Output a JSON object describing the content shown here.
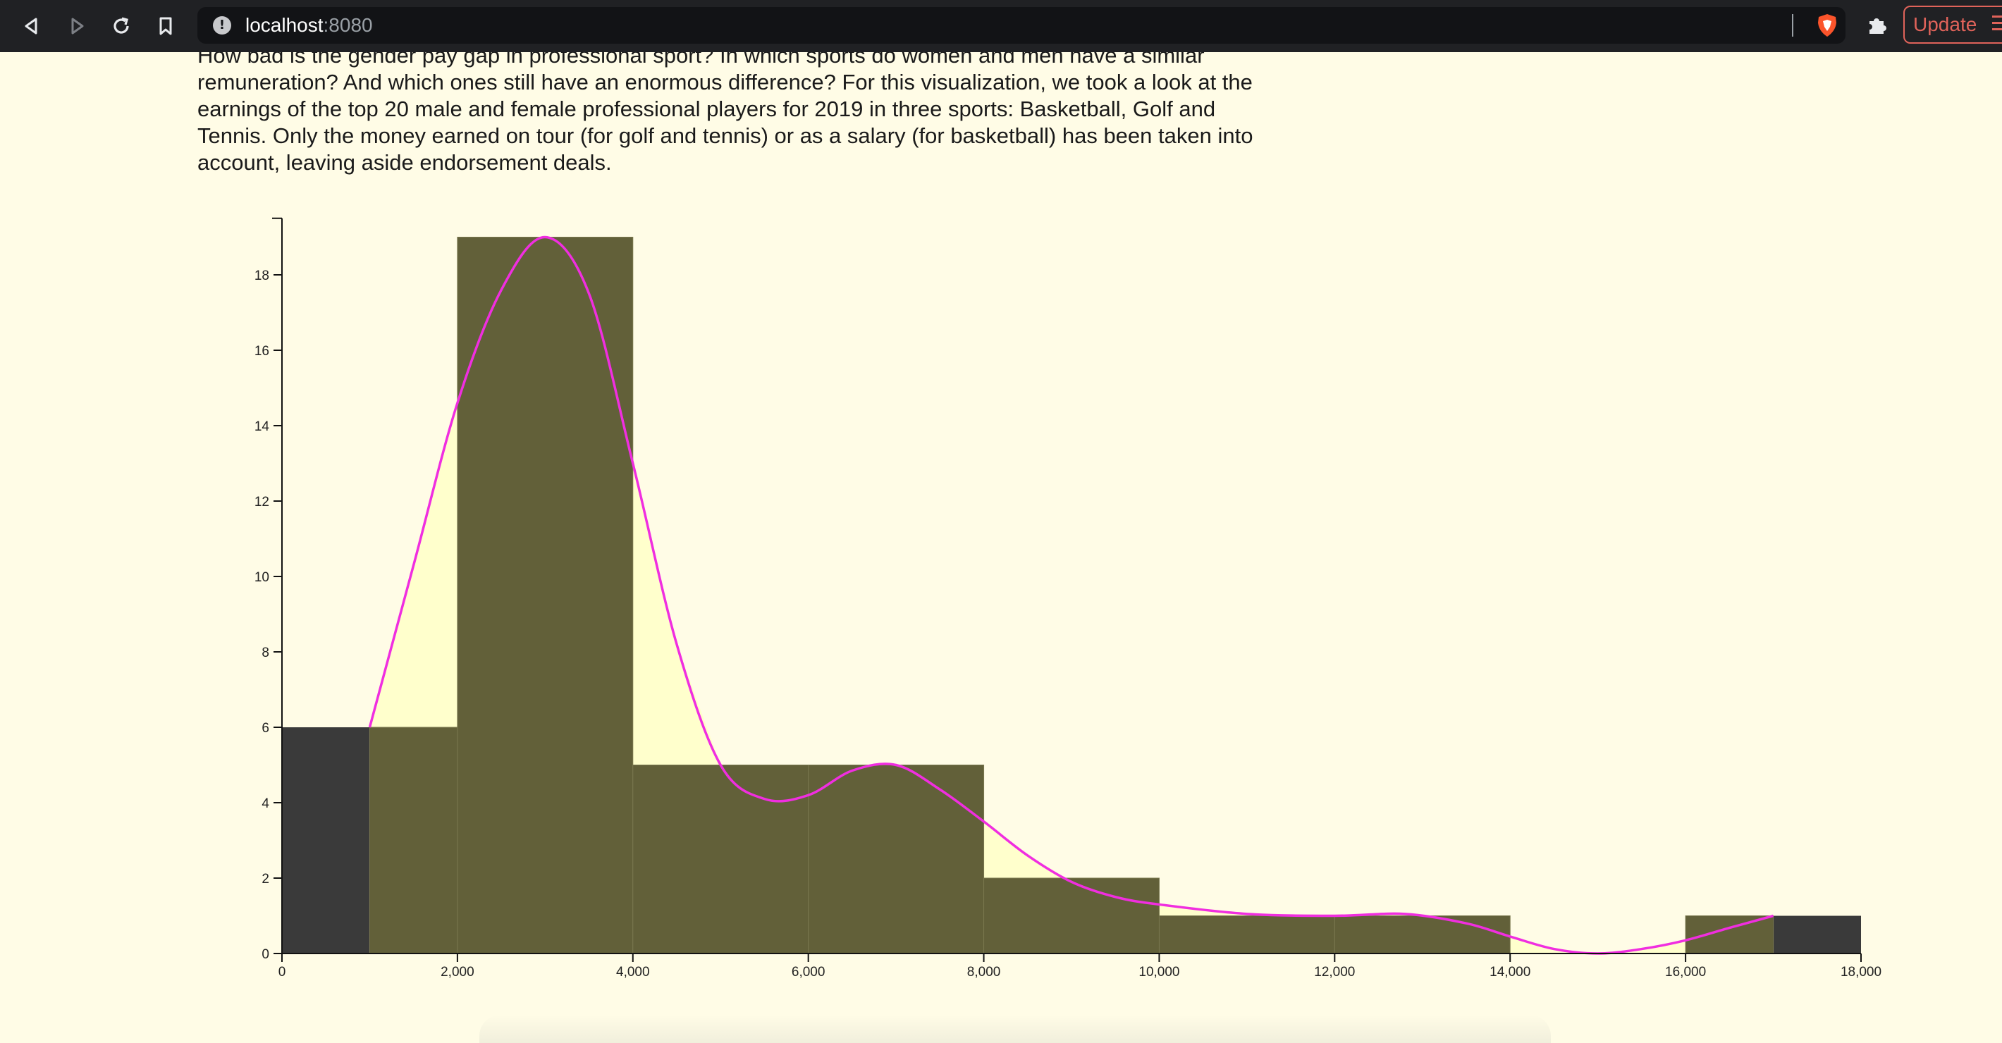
{
  "browser": {
    "url_host": "localhost",
    "url_port": ":8080",
    "update_label": "Update"
  },
  "intro": {
    "text": "How bad is the gender pay gap in professional sport? In which sports do women and men have a similar remuneration? And which ones still have an enormous difference? For this visualization, we took a look at the earnings of the top 20 male and female professional players for 2019 in three sports: Basketball, Golf and Tennis. Only the money earned on tour (for golf and tennis) or as a salary (for basketball) has been taken into account, leaving aside endorsement deals."
  },
  "colors": {
    "background": "#fffce6",
    "bar_dark": "#3a3a3a",
    "bar_olive": "#626039",
    "curve_fill": "#ffffcc",
    "curve_stroke": "#f02ee0"
  },
  "chart_data": {
    "type": "bar",
    "xlim": [
      0,
      18000
    ],
    "ylim": [
      0,
      19.5
    ],
    "x_ticks": [
      "0",
      "2,000",
      "4,000",
      "6,000",
      "8,000",
      "10,000",
      "12,000",
      "14,000",
      "16,000",
      "18,000"
    ],
    "x_tick_values": [
      0,
      2000,
      4000,
      6000,
      8000,
      10000,
      12000,
      14000,
      16000,
      18000
    ],
    "y_ticks": [
      "0",
      "2",
      "4",
      "6",
      "8",
      "10",
      "12",
      "14",
      "16",
      "18"
    ],
    "y_tick_values": [
      0,
      2,
      4,
      6,
      8,
      10,
      12,
      14,
      16,
      18
    ],
    "series": [
      {
        "bins": [
          {
            "x0": 0,
            "x1": 2000,
            "count": 6
          },
          {
            "x0": 2000,
            "x1": 4000,
            "count": 19
          },
          {
            "x0": 4000,
            "x1": 6000,
            "count": 5
          },
          {
            "x0": 6000,
            "x1": 8000,
            "count": 5
          },
          {
            "x0": 8000,
            "x1": 10000,
            "count": 2
          },
          {
            "x0": 10000,
            "x1": 12000,
            "count": 1
          },
          {
            "x0": 12000,
            "x1": 14000,
            "count": 1
          },
          {
            "x0": 14000,
            "x1": 16000,
            "count": 0
          },
          {
            "x0": 16000,
            "x1": 18000,
            "count": 1
          }
        ]
      },
      {
        "bins": [
          {
            "x0": 1000,
            "x1": 2000,
            "count": 6
          },
          {
            "x0": 2000,
            "x1": 4000,
            "count": 19
          },
          {
            "x0": 4000,
            "x1": 6000,
            "count": 5
          },
          {
            "x0": 6000,
            "x1": 8000,
            "count": 5
          },
          {
            "x0": 8000,
            "x1": 10000,
            "count": 2
          },
          {
            "x0": 10000,
            "x1": 12000,
            "count": 1
          },
          {
            "x0": 12000,
            "x1": 14000,
            "count": 1
          },
          {
            "x0": 16000,
            "x1": 17000,
            "count": 1
          }
        ]
      },
      {
        "curve": [
          [
            1000,
            6
          ],
          [
            1500,
            10.3
          ],
          [
            2000,
            14.6
          ],
          [
            2500,
            17.6
          ],
          [
            3000,
            19
          ],
          [
            3500,
            17.5
          ],
          [
            4000,
            13
          ],
          [
            4500,
            8.2
          ],
          [
            5000,
            5
          ],
          [
            5500,
            4.1
          ],
          [
            6000,
            4.2
          ],
          [
            6500,
            4.85
          ],
          [
            7000,
            5
          ],
          [
            7500,
            4.35
          ],
          [
            8000,
            3.5
          ],
          [
            8500,
            2.6
          ],
          [
            9000,
            1.9
          ],
          [
            9500,
            1.5
          ],
          [
            10000,
            1.3
          ],
          [
            11000,
            1.05
          ],
          [
            12000,
            1
          ],
          [
            12800,
            1.05
          ],
          [
            13500,
            0.8
          ],
          [
            14000,
            0.45
          ],
          [
            14500,
            0.12
          ],
          [
            15000,
            0
          ],
          [
            15500,
            0.12
          ],
          [
            16000,
            0.35
          ],
          [
            16500,
            0.68
          ],
          [
            17000,
            1
          ]
        ]
      }
    ]
  }
}
